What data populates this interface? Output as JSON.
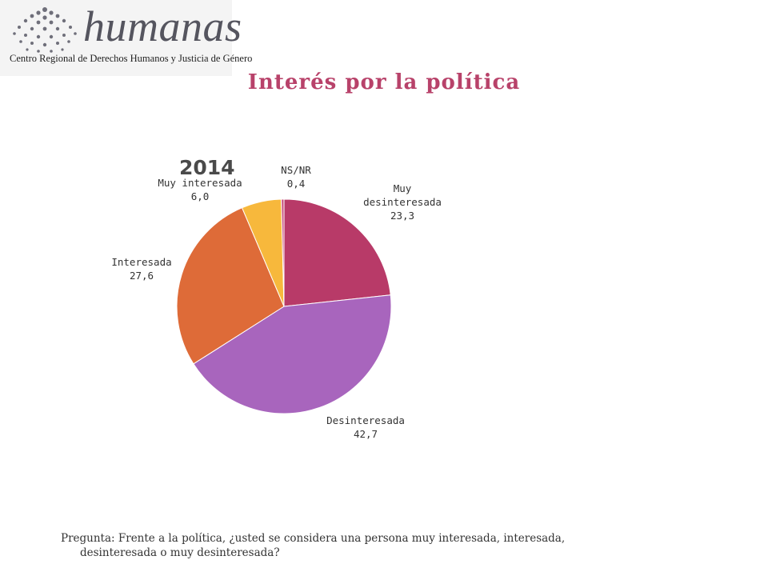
{
  "logo": {
    "wordmark": "humanas",
    "subtitle": "Centro Regional de Derechos Humanos y Justicia de Género"
  },
  "page": {
    "title": "Interés por la política",
    "question_line1": "Pregunta: Frente a la política, ¿usted se considera una persona muy interesada, interesada,",
    "question_line2": "desinteresada o muy desinteresada?"
  },
  "chart_data": {
    "type": "pie",
    "title": "2014",
    "start_angle_deg": 0,
    "direction": "clockwise",
    "slices": [
      {
        "label": "Muy desinteresada",
        "label_lines": [
          "Muy",
          "desinteresada"
        ],
        "value": 23.3,
        "value_text": "23,3",
        "color": "#b83a68"
      },
      {
        "label": "Desinteresada",
        "label_lines": [
          "Desinteresada"
        ],
        "value": 42.7,
        "value_text": "42,7",
        "color": "#a865bd"
      },
      {
        "label": "Interesada",
        "label_lines": [
          "Interesada"
        ],
        "value": 27.6,
        "value_text": "27,6",
        "color": "#de6b38"
      },
      {
        "label": "Muy interesada",
        "label_lines": [
          "Muy interesada"
        ],
        "value": 6.0,
        "value_text": "6,0",
        "color": "#f7b83c"
      },
      {
        "label": "NS/NR",
        "label_lines": [
          "NS/NR"
        ],
        "value": 0.4,
        "value_text": "0,4",
        "color": "#c9507e"
      }
    ]
  }
}
